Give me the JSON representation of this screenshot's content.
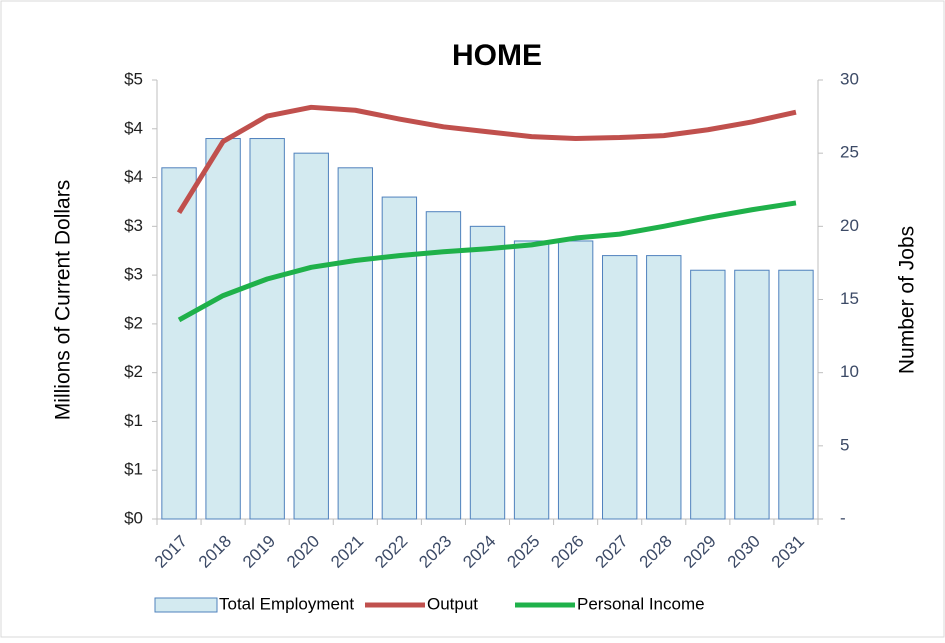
{
  "chart_data": {
    "type": "bar-line",
    "title": "HOME",
    "ylabel": "Millions of Current Dollars",
    "y2label": "Number of Jobs",
    "categories": [
      "2017",
      "2018",
      "2019",
      "2020",
      "2021",
      "2022",
      "2023",
      "2024",
      "2025",
      "2026",
      "2027",
      "2028",
      "2029",
      "2030",
      "2031"
    ],
    "series": [
      {
        "name": "Total Employment",
        "type": "bar",
        "axis": "y2",
        "color": "#d3eaf0",
        "edgecolor": "#4f81bd",
        "values": [
          24,
          26,
          26,
          25,
          24,
          22,
          21,
          20,
          19,
          19,
          18,
          18,
          17,
          17,
          17
        ]
      },
      {
        "name": "Output",
        "type": "line",
        "color": "#c0504d",
        "values": [
          3.14,
          3.87,
          4.13,
          4.22,
          4.19,
          4.1,
          4.02,
          3.97,
          3.92,
          3.9,
          3.91,
          3.93,
          3.99,
          4.07,
          4.17
        ]
      },
      {
        "name": "Personal Income",
        "type": "line",
        "color": "#1fb14a",
        "values": [
          2.04,
          2.29,
          2.46,
          2.58,
          2.65,
          2.7,
          2.74,
          2.77,
          2.81,
          2.88,
          2.92,
          3.0,
          3.09,
          3.17,
          3.24
        ]
      }
    ],
    "ylim": [
      0,
      4.5
    ],
    "yticks": [
      {
        "value": 0,
        "label": "$0"
      },
      {
        "value": 0.5,
        "label": "$1"
      },
      {
        "value": 1,
        "label": "$1"
      },
      {
        "value": 1.5,
        "label": "$2"
      },
      {
        "value": 2,
        "label": "$2"
      },
      {
        "value": 2.5,
        "label": "$3"
      },
      {
        "value": 3,
        "label": "$3"
      },
      {
        "value": 3.5,
        "label": "$4"
      },
      {
        "value": 4,
        "label": "$4"
      },
      {
        "value": 4.5,
        "label": "$5"
      }
    ],
    "y2lim": [
      0,
      30
    ],
    "y2ticks": [
      {
        "value": 0,
        "label": "-"
      },
      5,
      10,
      15,
      20,
      25,
      30
    ],
    "legend": "bottom"
  }
}
